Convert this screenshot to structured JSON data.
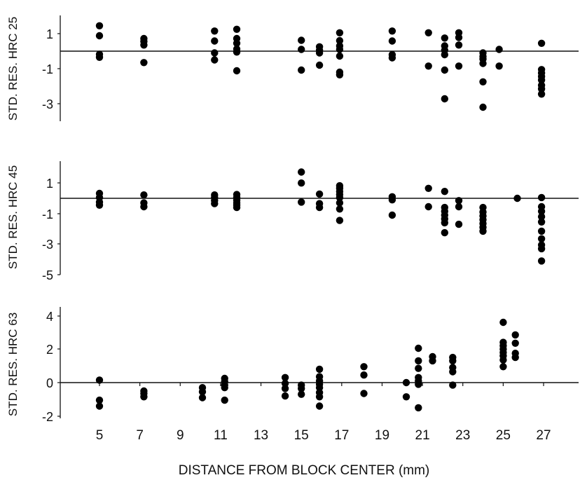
{
  "chart_data": [
    {
      "type": "scatter",
      "ylabel": "STD. RES. HRC 25",
      "ylim": [
        -4,
        2
      ],
      "yticks": [
        1,
        -1,
        -3
      ],
      "ytick_labels": [
        "1",
        "-1",
        "-3"
      ],
      "reference_line": 0,
      "grid": false,
      "points": [
        {
          "x": 5,
          "y": 1.45
        },
        {
          "x": 5,
          "y": 0.88
        },
        {
          "x": 5,
          "y": -0.18
        },
        {
          "x": 5,
          "y": -0.35
        },
        {
          "x": 7.2,
          "y": 0.72
        },
        {
          "x": 7.2,
          "y": 0.55
        },
        {
          "x": 7.2,
          "y": 0.35
        },
        {
          "x": 7.2,
          "y": -0.65
        },
        {
          "x": 10.7,
          "y": 1.15
        },
        {
          "x": 10.7,
          "y": 0.58
        },
        {
          "x": 10.7,
          "y": -0.1
        },
        {
          "x": 10.7,
          "y": -0.5
        },
        {
          "x": 11.8,
          "y": 1.25
        },
        {
          "x": 11.8,
          "y": 0.72
        },
        {
          "x": 11.8,
          "y": 0.45
        },
        {
          "x": 11.8,
          "y": 0.12
        },
        {
          "x": 11.8,
          "y": -0.05
        },
        {
          "x": 11.8,
          "y": -1.12
        },
        {
          "x": 15,
          "y": 0.62
        },
        {
          "x": 15,
          "y": 0.1
        },
        {
          "x": 15,
          "y": -1.08
        },
        {
          "x": 15.9,
          "y": 0.25
        },
        {
          "x": 15.9,
          "y": 0.05
        },
        {
          "x": 15.9,
          "y": -0.1
        },
        {
          "x": 15.9,
          "y": -0.8
        },
        {
          "x": 16.9,
          "y": 1.05
        },
        {
          "x": 16.9,
          "y": 0.6
        },
        {
          "x": 16.9,
          "y": 0.3
        },
        {
          "x": 16.9,
          "y": 0.1
        },
        {
          "x": 16.9,
          "y": -0.28
        },
        {
          "x": 16.9,
          "y": -1.2
        },
        {
          "x": 16.9,
          "y": -1.35
        },
        {
          "x": 19.5,
          "y": 1.15
        },
        {
          "x": 19.5,
          "y": 0.58
        },
        {
          "x": 19.5,
          "y": -0.2
        },
        {
          "x": 19.5,
          "y": -0.38
        },
        {
          "x": 21.3,
          "y": 1.05
        },
        {
          "x": 21.3,
          "y": -0.85
        },
        {
          "x": 22.1,
          "y": 0.75
        },
        {
          "x": 22.1,
          "y": 0.3
        },
        {
          "x": 22.1,
          "y": 0.05
        },
        {
          "x": 22.1,
          "y": -0.2
        },
        {
          "x": 22.1,
          "y": -1.08
        },
        {
          "x": 22.1,
          "y": -2.72
        },
        {
          "x": 22.8,
          "y": 1.05
        },
        {
          "x": 22.8,
          "y": 0.78
        },
        {
          "x": 22.8,
          "y": 0.35
        },
        {
          "x": 22.8,
          "y": -0.85
        },
        {
          "x": 24,
          "y": -0.1
        },
        {
          "x": 24,
          "y": -0.3
        },
        {
          "x": 24,
          "y": -0.45
        },
        {
          "x": 24,
          "y": -0.7
        },
        {
          "x": 24,
          "y": -1.75
        },
        {
          "x": 24,
          "y": -3.2
        },
        {
          "x": 24.8,
          "y": 0.1
        },
        {
          "x": 24.8,
          "y": -0.85
        },
        {
          "x": 26.9,
          "y": 0.45
        },
        {
          "x": 26.9,
          "y": -1.05
        },
        {
          "x": 26.9,
          "y": -1.25
        },
        {
          "x": 26.9,
          "y": -1.45
        },
        {
          "x": 26.9,
          "y": -1.65
        },
        {
          "x": 26.9,
          "y": -1.95
        },
        {
          "x": 26.9,
          "y": -2.15
        },
        {
          "x": 26.9,
          "y": -2.45
        }
      ]
    },
    {
      "type": "scatter",
      "ylabel": "STD. RES. HRC 45",
      "ylim": [
        -5,
        2.6
      ],
      "yticks": [
        1,
        -1,
        -3,
        -5
      ],
      "ytick_labels": [
        "1",
        "-1",
        "-3",
        "-5"
      ],
      "reference_line": 0,
      "grid": false,
      "points": [
        {
          "x": 5,
          "y": 0.32
        },
        {
          "x": 5,
          "y": 0.05
        },
        {
          "x": 5,
          "y": -0.25
        },
        {
          "x": 5,
          "y": -0.45
        },
        {
          "x": 7.2,
          "y": 0.22
        },
        {
          "x": 7.2,
          "y": -0.3
        },
        {
          "x": 7.2,
          "y": -0.55
        },
        {
          "x": 10.7,
          "y": 0.22
        },
        {
          "x": 10.7,
          "y": 0.05
        },
        {
          "x": 10.7,
          "y": -0.15
        },
        {
          "x": 10.7,
          "y": -0.35
        },
        {
          "x": 11.8,
          "y": 0.25
        },
        {
          "x": 11.8,
          "y": 0.05
        },
        {
          "x": 11.8,
          "y": -0.12
        },
        {
          "x": 11.8,
          "y": -0.3
        },
        {
          "x": 11.8,
          "y": -0.45
        },
        {
          "x": 11.8,
          "y": -0.6
        },
        {
          "x": 15,
          "y": 1.72
        },
        {
          "x": 15,
          "y": 1.0
        },
        {
          "x": 15,
          "y": -0.25
        },
        {
          "x": 15.9,
          "y": 0.28
        },
        {
          "x": 15.9,
          "y": -0.35
        },
        {
          "x": 15.9,
          "y": -0.6
        },
        {
          "x": 16.9,
          "y": 0.82
        },
        {
          "x": 16.9,
          "y": 0.65
        },
        {
          "x": 16.9,
          "y": 0.45
        },
        {
          "x": 16.9,
          "y": 0.25
        },
        {
          "x": 16.9,
          "y": 0.05
        },
        {
          "x": 16.9,
          "y": -0.3
        },
        {
          "x": 16.9,
          "y": -0.7
        },
        {
          "x": 16.9,
          "y": -1.45
        },
        {
          "x": 19.5,
          "y": 0.1
        },
        {
          "x": 19.5,
          "y": -0.1
        },
        {
          "x": 19.5,
          "y": -1.1
        },
        {
          "x": 21.3,
          "y": 0.65
        },
        {
          "x": 21.3,
          "y": -0.55
        },
        {
          "x": 22.1,
          "y": 0.45
        },
        {
          "x": 22.1,
          "y": -0.6
        },
        {
          "x": 22.1,
          "y": -0.85
        },
        {
          "x": 22.1,
          "y": -1.1
        },
        {
          "x": 22.1,
          "y": -1.35
        },
        {
          "x": 22.1,
          "y": -1.6
        },
        {
          "x": 22.1,
          "y": -2.25
        },
        {
          "x": 22.8,
          "y": -0.15
        },
        {
          "x": 22.8,
          "y": -0.55
        },
        {
          "x": 22.8,
          "y": -1.7
        },
        {
          "x": 24,
          "y": -0.6
        },
        {
          "x": 24,
          "y": -0.9
        },
        {
          "x": 24,
          "y": -1.15
        },
        {
          "x": 24,
          "y": -1.4
        },
        {
          "x": 24,
          "y": -1.65
        },
        {
          "x": 24,
          "y": -1.9
        },
        {
          "x": 24,
          "y": -2.15
        },
        {
          "x": 25.7,
          "y": 0.0
        },
        {
          "x": 26.9,
          "y": 0.05
        },
        {
          "x": 26.9,
          "y": -0.55
        },
        {
          "x": 26.9,
          "y": -0.85
        },
        {
          "x": 26.9,
          "y": -1.2
        },
        {
          "x": 26.9,
          "y": -1.55
        },
        {
          "x": 26.9,
          "y": -2.15
        },
        {
          "x": 26.9,
          "y": -2.65
        },
        {
          "x": 26.9,
          "y": -3.05
        },
        {
          "x": 26.9,
          "y": -3.3
        },
        {
          "x": 26.9,
          "y": -4.1
        }
      ]
    },
    {
      "type": "scatter",
      "ylabel": "STD. RES. HRC 63",
      "ylim": [
        -2,
        4.5
      ],
      "yticks": [
        4,
        2,
        0,
        -2
      ],
      "ytick_labels": [
        "4",
        "2",
        "0",
        "-2"
      ],
      "xlabel": "DISTANCE FROM BLOCK CENTER (mm)",
      "xlim": [
        3,
        29
      ],
      "xticks": [
        5,
        7,
        9,
        11,
        13,
        15,
        17,
        19,
        21,
        23,
        25,
        27
      ],
      "xtick_labels": [
        "5",
        "7",
        "9",
        "11",
        "13",
        "15",
        "17",
        "19",
        "21",
        "23",
        "25",
        "27"
      ],
      "reference_line": 0,
      "grid": false,
      "points": [
        {
          "x": 5,
          "y": 0.15
        },
        {
          "x": 5,
          "y": -1.05
        },
        {
          "x": 5,
          "y": -1.4
        },
        {
          "x": 7.2,
          "y": -0.5
        },
        {
          "x": 7.2,
          "y": -0.65
        },
        {
          "x": 7.2,
          "y": -0.85
        },
        {
          "x": 10.1,
          "y": -0.3
        },
        {
          "x": 10.1,
          "y": -0.55
        },
        {
          "x": 10.1,
          "y": -0.9
        },
        {
          "x": 11.2,
          "y": 0.25
        },
        {
          "x": 11.2,
          "y": 0.05
        },
        {
          "x": 11.2,
          "y": -0.15
        },
        {
          "x": 11.2,
          "y": -0.3
        },
        {
          "x": 11.2,
          "y": -1.05
        },
        {
          "x": 14.2,
          "y": 0.3
        },
        {
          "x": 14.2,
          "y": -0.05
        },
        {
          "x": 14.2,
          "y": -0.35
        },
        {
          "x": 14.2,
          "y": -0.8
        },
        {
          "x": 15,
          "y": -0.15
        },
        {
          "x": 15,
          "y": -0.35
        },
        {
          "x": 15,
          "y": -0.7
        },
        {
          "x": 15.9,
          "y": 0.8
        },
        {
          "x": 15.9,
          "y": 0.35
        },
        {
          "x": 15.9,
          "y": 0.1
        },
        {
          "x": 15.9,
          "y": -0.1
        },
        {
          "x": 15.9,
          "y": -0.3
        },
        {
          "x": 15.9,
          "y": -0.6
        },
        {
          "x": 15.9,
          "y": -0.85
        },
        {
          "x": 15.9,
          "y": -1.4
        },
        {
          "x": 18.1,
          "y": 0.95
        },
        {
          "x": 18.1,
          "y": 0.45
        },
        {
          "x": 18.1,
          "y": -0.65
        },
        {
          "x": 20.2,
          "y": 0.0
        },
        {
          "x": 20.2,
          "y": -0.85
        },
        {
          "x": 20.8,
          "y": 2.05
        },
        {
          "x": 20.8,
          "y": 1.3
        },
        {
          "x": 20.8,
          "y": 0.85
        },
        {
          "x": 20.8,
          "y": 0.3
        },
        {
          "x": 20.8,
          "y": 0.1
        },
        {
          "x": 20.8,
          "y": -0.1
        },
        {
          "x": 20.8,
          "y": -1.5
        },
        {
          "x": 21.5,
          "y": 1.55
        },
        {
          "x": 21.5,
          "y": 1.3
        },
        {
          "x": 22.5,
          "y": 1.5
        },
        {
          "x": 22.5,
          "y": 1.3
        },
        {
          "x": 22.5,
          "y": 0.9
        },
        {
          "x": 22.5,
          "y": 0.65
        },
        {
          "x": 22.5,
          "y": -0.15
        },
        {
          "x": 25,
          "y": 3.6
        },
        {
          "x": 25,
          "y": 2.4
        },
        {
          "x": 25,
          "y": 2.2
        },
        {
          "x": 25,
          "y": 2.0
        },
        {
          "x": 25,
          "y": 1.8
        },
        {
          "x": 25,
          "y": 1.6
        },
        {
          "x": 25,
          "y": 1.35
        },
        {
          "x": 25,
          "y": 0.95
        },
        {
          "x": 25.6,
          "y": 2.85
        },
        {
          "x": 25.6,
          "y": 2.35
        },
        {
          "x": 25.6,
          "y": 1.75
        },
        {
          "x": 25.6,
          "y": 1.5
        }
      ]
    }
  ]
}
